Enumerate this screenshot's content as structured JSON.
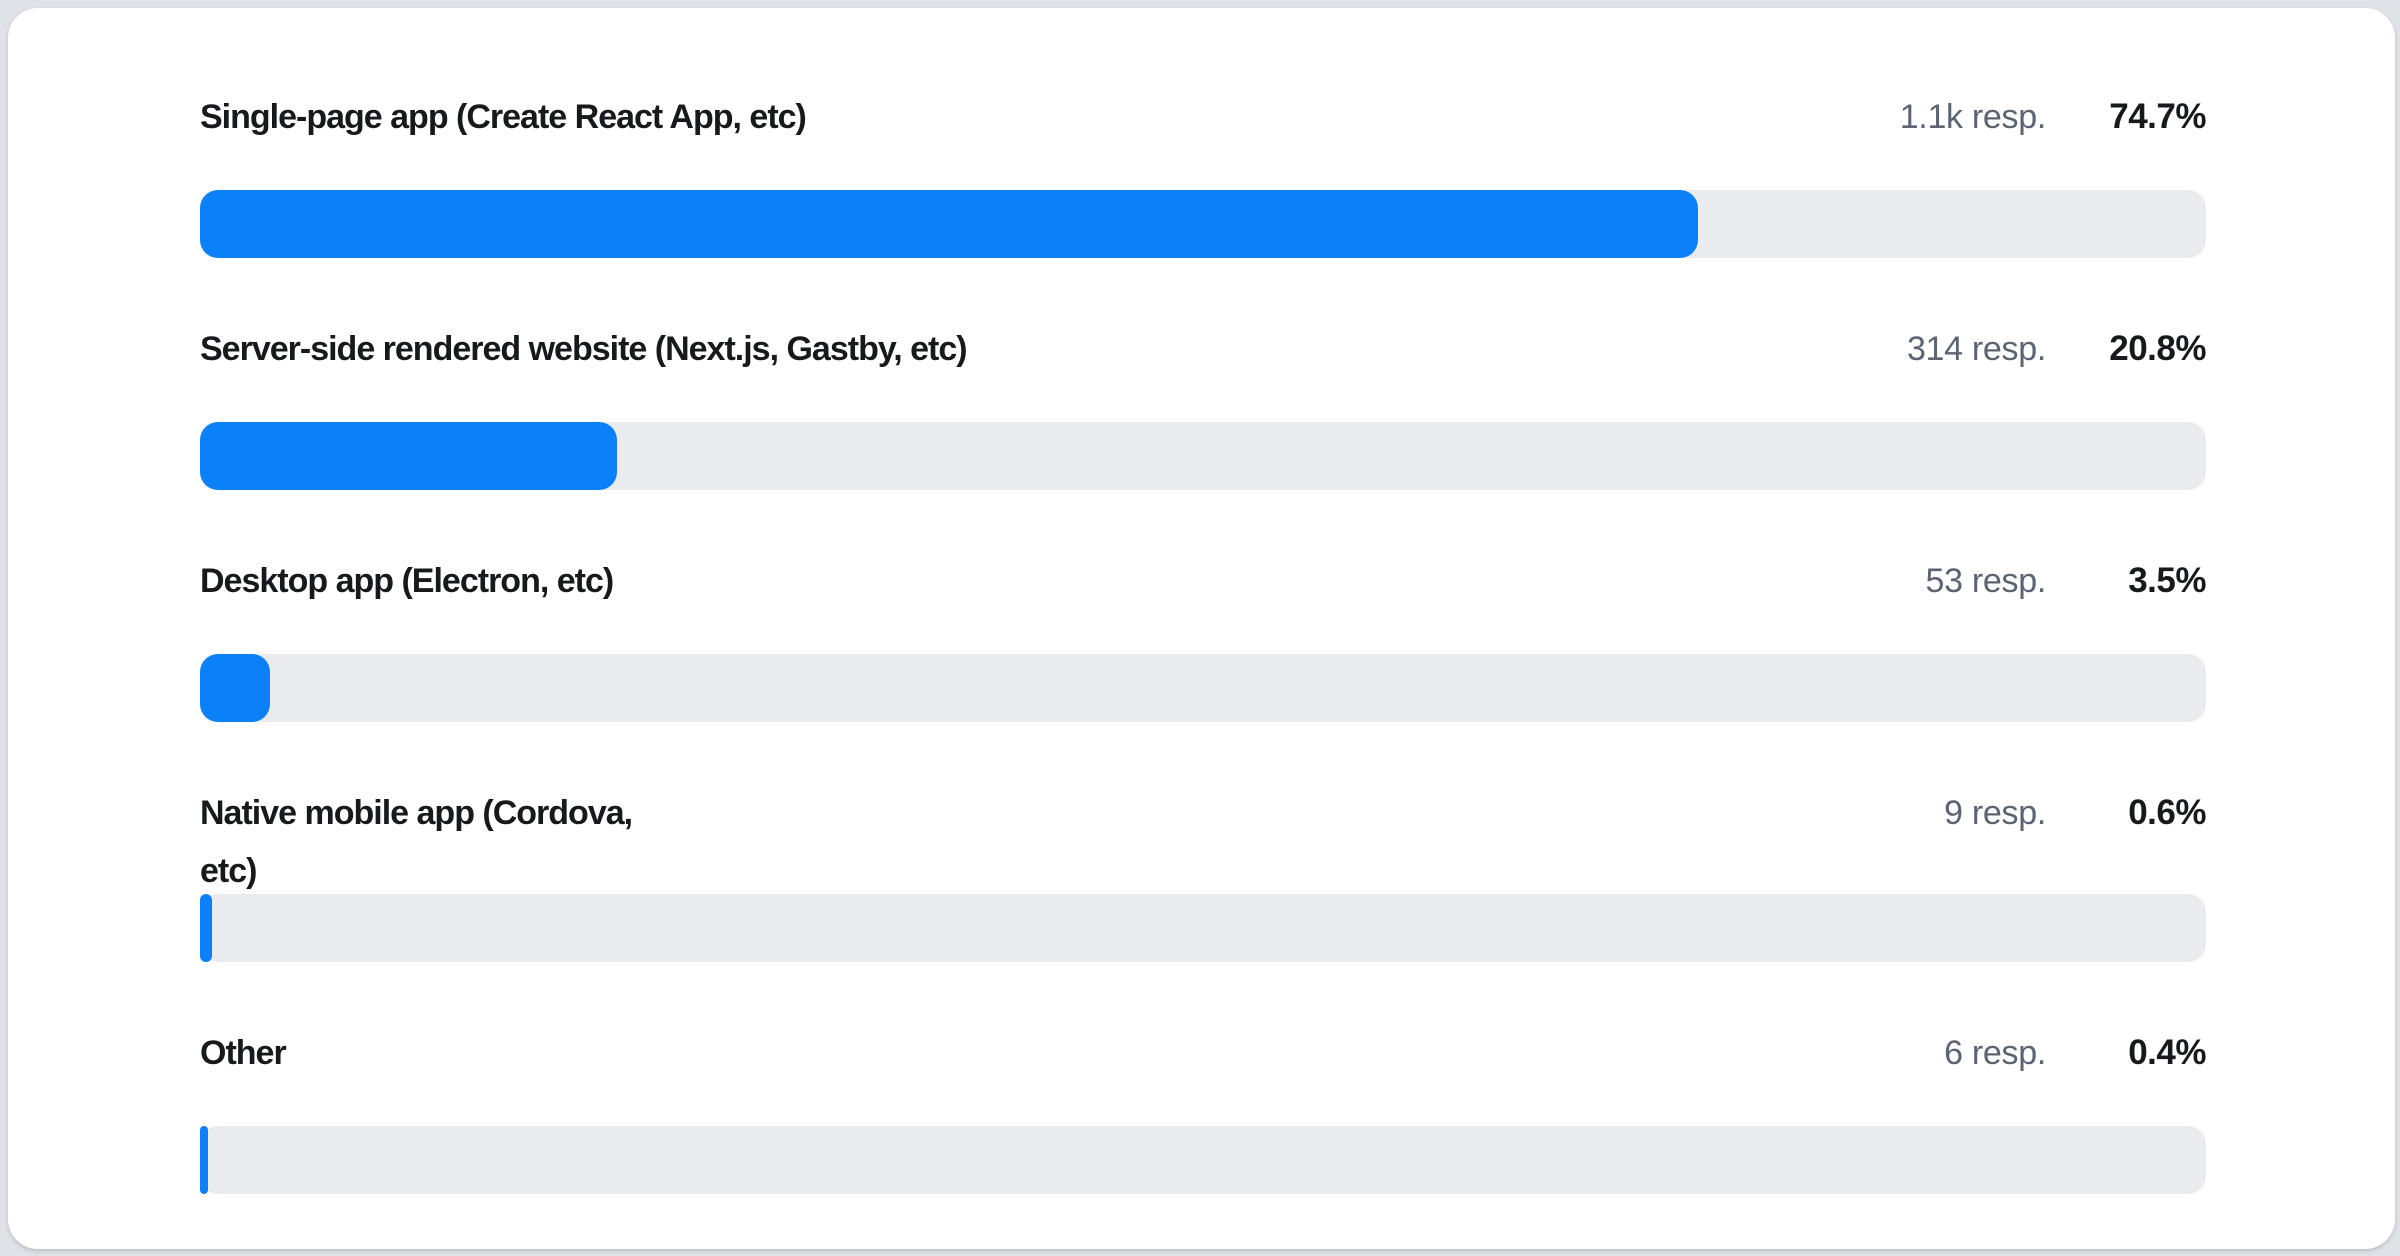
{
  "page": {
    "background_color": "#dfe2e6",
    "card_background_color": "#ffffff"
  },
  "colors": {
    "bar_fill": "#0b80f9",
    "bar_track": "#e9ebef",
    "label_text": "#17191c",
    "muted_text": "#5b6472"
  },
  "chart_data": {
    "type": "bar",
    "orientation": "horizontal",
    "title": "",
    "xlabel": "",
    "ylabel": "",
    "xlim": [
      0,
      100
    ],
    "grid": false,
    "legend": false,
    "value_unit": "%",
    "categories": [
      "Single-page app (Create React App, etc)",
      "Server-side rendered website (Next.js, Gastby, etc)",
      "Desktop app (Electron, etc)",
      "Native mobile app (Cordova, etc)",
      "Other"
    ],
    "values": [
      74.7,
      20.8,
      3.5,
      0.6,
      0.4
    ],
    "response_counts": [
      "1.1k",
      "314",
      "53",
      "9",
      "6"
    ]
  },
  "rows": [
    {
      "label": "Single-page app (Create React App, etc)",
      "responses": "1.1k resp.",
      "percent": "74.7%",
      "value_pct": 74.7
    },
    {
      "label": "Server-side rendered website (Next.js, Gastby, etc)",
      "responses": "314 resp.",
      "percent": "20.8%",
      "value_pct": 20.8
    },
    {
      "label": "Desktop app (Electron, etc)",
      "responses": "53 resp.",
      "percent": "3.5%",
      "value_pct": 3.5
    },
    {
      "label": "Native mobile app (Cordova,\netc)",
      "responses": "9 resp.",
      "percent": "0.6%",
      "value_pct": 0.6
    },
    {
      "label": "Other",
      "responses": "6 resp.",
      "percent": "0.4%",
      "value_pct": 0.4
    }
  ]
}
